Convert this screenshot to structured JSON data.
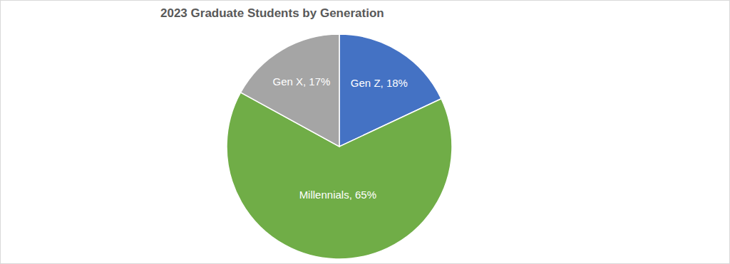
{
  "chart_data": {
    "type": "pie",
    "title": "2023 Graduate Students by Generation",
    "categories": [
      "Gen Z",
      "Millennials",
      "Gen X"
    ],
    "values": [
      18,
      65,
      17
    ],
    "value_labels": [
      "Gen Z, 18%",
      "Millennials, 65%",
      "Gen X, 17%"
    ],
    "colors": [
      "#4472c4",
      "#70ad47",
      "#a5a5a5"
    ],
    "data_labels": true
  }
}
